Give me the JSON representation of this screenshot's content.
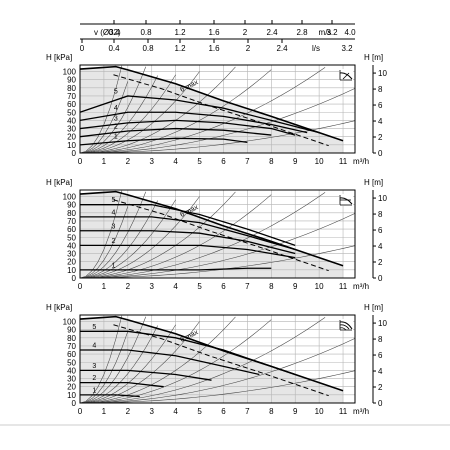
{
  "top_axes": {
    "velocity_label": "v (Ø32)",
    "velocity_ticks": [
      "0.4",
      "0.8",
      "1.2",
      "1.6",
      "2",
      "2.4",
      "2.8",
      "3.2"
    ],
    "velocity_unit": "m/s",
    "velocity_end": "4.0",
    "flow_ls_ticks": [
      "0",
      "0.4",
      "0.8",
      "1.2",
      "1.6",
      "2",
      "2.4"
    ],
    "flow_ls_unit": "l/s",
    "flow_ls_end": "3.2"
  },
  "chart_data": [
    {
      "type": "line",
      "mode": "pump-curves-constant-curve",
      "xlabel": "m³/h",
      "ylabel_left": "H [kPa]",
      "ylabel_right": "H [m]",
      "x_ticks": [
        "0",
        "1",
        "2",
        "3",
        "4",
        "5",
        "6",
        "7",
        "8",
        "9",
        "10",
        "11"
      ],
      "y_ticks_left": [
        "0",
        "10",
        "20",
        "30",
        "40",
        "50",
        "60",
        "70",
        "80",
        "90",
        "100"
      ],
      "y_ticks_right": [
        "0",
        "2",
        "4",
        "6",
        "8",
        "10"
      ],
      "xlim": [
        0,
        11.5
      ],
      "ylim": [
        0,
        108
      ],
      "curve_labels": [
        "1",
        "2",
        "3",
        "4",
        "5",
        "6 max"
      ],
      "series": [
        {
          "name": "6 max",
          "x": [
            0,
            1,
            1.5,
            2,
            4,
            6,
            8,
            10,
            11
          ],
          "y": [
            103,
            105,
            106,
            102,
            85,
            64,
            45,
            25,
            15
          ]
        },
        {
          "name": "5",
          "x": [
            0,
            2,
            4,
            6,
            8,
            10
          ],
          "y": [
            50,
            70,
            65,
            55,
            40,
            25
          ]
        },
        {
          "name": "4",
          "x": [
            0,
            2,
            4,
            6,
            8,
            9.5
          ],
          "y": [
            40,
            50,
            50,
            45,
            35,
            25
          ]
        },
        {
          "name": "3",
          "x": [
            0,
            2,
            4,
            6,
            8,
            9
          ],
          "y": [
            30,
            37,
            40,
            37,
            30,
            22
          ]
        },
        {
          "name": "2",
          "x": [
            0,
            2,
            4,
            6,
            8
          ],
          "y": [
            20,
            27,
            30,
            28,
            22
          ]
        },
        {
          "name": "1",
          "x": [
            0,
            2,
            4,
            6,
            7
          ],
          "y": [
            10,
            15,
            18,
            17,
            13
          ]
        }
      ]
    },
    {
      "type": "line",
      "mode": "pump-curves-constant-pressure",
      "xlabel": "m³/h",
      "ylabel_left": "H [kPa]",
      "ylabel_right": "H [m]",
      "x_ticks": [
        "0",
        "1",
        "2",
        "3",
        "4",
        "5",
        "6",
        "7",
        "8",
        "9",
        "10",
        "11"
      ],
      "y_ticks_left": [
        "0",
        "10",
        "20",
        "30",
        "40",
        "50",
        "60",
        "70",
        "80",
        "90",
        "100"
      ],
      "y_ticks_right": [
        "0",
        "2",
        "4",
        "6",
        "8",
        "10"
      ],
      "xlim": [
        0,
        11.5
      ],
      "ylim": [
        0,
        108
      ],
      "curve_labels": [
        "1",
        "2",
        "3",
        "4",
        "5",
        "6 max"
      ],
      "series": [
        {
          "name": "6 max",
          "x": [
            0,
            1,
            1.5,
            2,
            4,
            6,
            8,
            10,
            11
          ],
          "y": [
            103,
            105,
            106,
            102,
            85,
            64,
            45,
            25,
            15
          ]
        },
        {
          "name": "5",
          "x": [
            0,
            3,
            5,
            7,
            9
          ],
          "y": [
            90,
            90,
            78,
            60,
            40
          ]
        },
        {
          "name": "4",
          "x": [
            0,
            3,
            5,
            7,
            9
          ],
          "y": [
            75,
            75,
            68,
            52,
            35
          ]
        },
        {
          "name": "3",
          "x": [
            0,
            3,
            5,
            7,
            9
          ],
          "y": [
            58,
            58,
            55,
            45,
            30
          ]
        },
        {
          "name": "2",
          "x": [
            0,
            3,
            5,
            7,
            9
          ],
          "y": [
            40,
            40,
            40,
            35,
            25
          ]
        },
        {
          "name": "1",
          "x": [
            0,
            3,
            5,
            7,
            8
          ],
          "y": [
            10,
            10,
            10,
            12,
            12
          ]
        }
      ]
    },
    {
      "type": "line",
      "mode": "pump-curves-proportional-pressure",
      "xlabel": "m³/h",
      "ylabel_left": "H [kPa]",
      "ylabel_right": "H [m]",
      "x_ticks": [
        "0",
        "1",
        "2",
        "3",
        "4",
        "5",
        "6",
        "7",
        "8",
        "9",
        "10",
        "11"
      ],
      "y_ticks_left": [
        "0",
        "10",
        "20",
        "30",
        "40",
        "50",
        "60",
        "70",
        "80",
        "90",
        "100"
      ],
      "y_ticks_right": [
        "0",
        "2",
        "4",
        "6",
        "8",
        "10"
      ],
      "xlim": [
        0,
        11.5
      ],
      "ylim": [
        0,
        108
      ],
      "curve_labels": [
        "1",
        "2",
        "3",
        "4",
        "5",
        "6 max"
      ],
      "series": [
        {
          "name": "6 max",
          "x": [
            0,
            1,
            1.5,
            2,
            4,
            6,
            8,
            10,
            11
          ],
          "y": [
            103,
            105,
            106,
            102,
            85,
            64,
            45,
            25,
            15
          ]
        },
        {
          "name": "5",
          "x": [
            0,
            2,
            4,
            6,
            8,
            9
          ],
          "y": [
            88,
            88,
            80,
            65,
            45,
            35
          ]
        },
        {
          "name": "4",
          "x": [
            0,
            2,
            4,
            6,
            7.5
          ],
          "y": [
            65,
            65,
            58,
            45,
            35
          ]
        },
        {
          "name": "3",
          "x": [
            0,
            2,
            4,
            5.5
          ],
          "y": [
            40,
            40,
            35,
            28
          ]
        },
        {
          "name": "2",
          "x": [
            0,
            2,
            3.5
          ],
          "y": [
            25,
            25,
            20
          ]
        },
        {
          "name": "1",
          "x": [
            0,
            1.5,
            2.5
          ],
          "y": [
            10,
            10,
            8
          ]
        }
      ]
    }
  ]
}
